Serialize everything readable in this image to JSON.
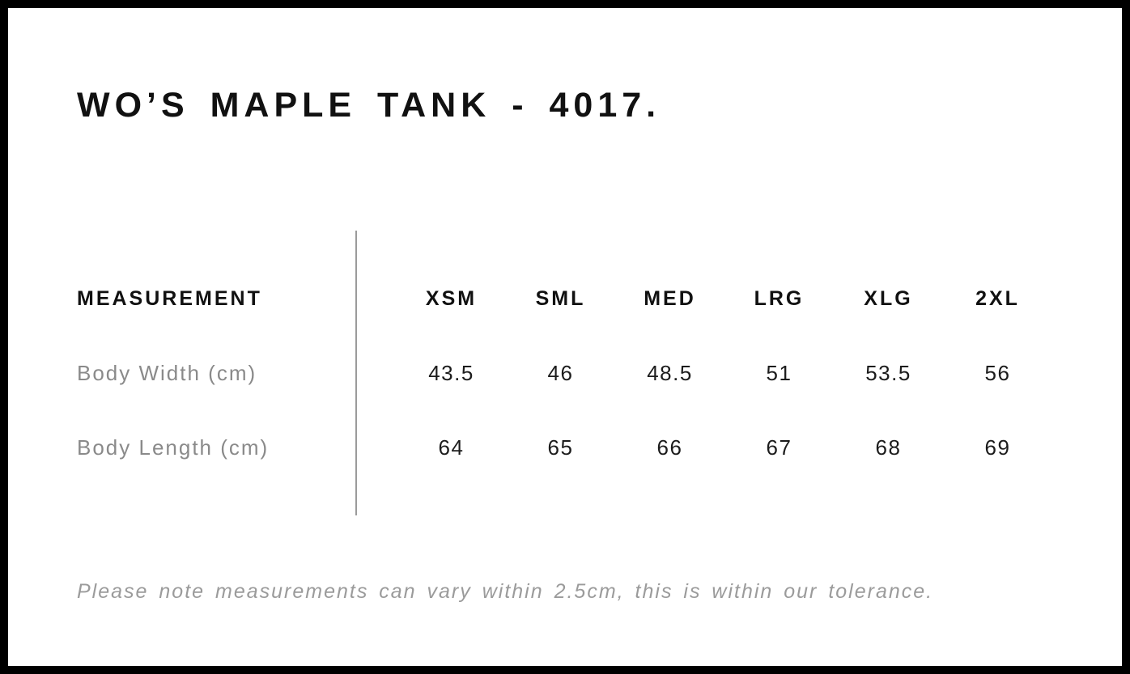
{
  "title": "WO’S MAPLE TANK - 4017.",
  "table": {
    "measurement_header": "MEASUREMENT",
    "size_headers": [
      "XSM",
      "SML",
      "MED",
      "LRG",
      "XLG",
      "2XL"
    ],
    "rows": [
      {
        "label": "Body Width (cm)",
        "values": [
          "43.5",
          "46",
          "48.5",
          "51",
          "53.5",
          "56"
        ]
      },
      {
        "label": "Body Length (cm)",
        "values": [
          "64",
          "65",
          "66",
          "67",
          "68",
          "69"
        ]
      }
    ]
  },
  "footer_note": "Please note measurements can vary within 2.5cm, this is within our tolerance.",
  "colors": {
    "frame_border": "#000000",
    "heading_text": "#111111",
    "value_text": "#1c1c1c",
    "muted_label": "#8a8a8a",
    "note_text": "#9b9b9b",
    "divider": "#9b9b9b",
    "background": "#ffffff"
  }
}
